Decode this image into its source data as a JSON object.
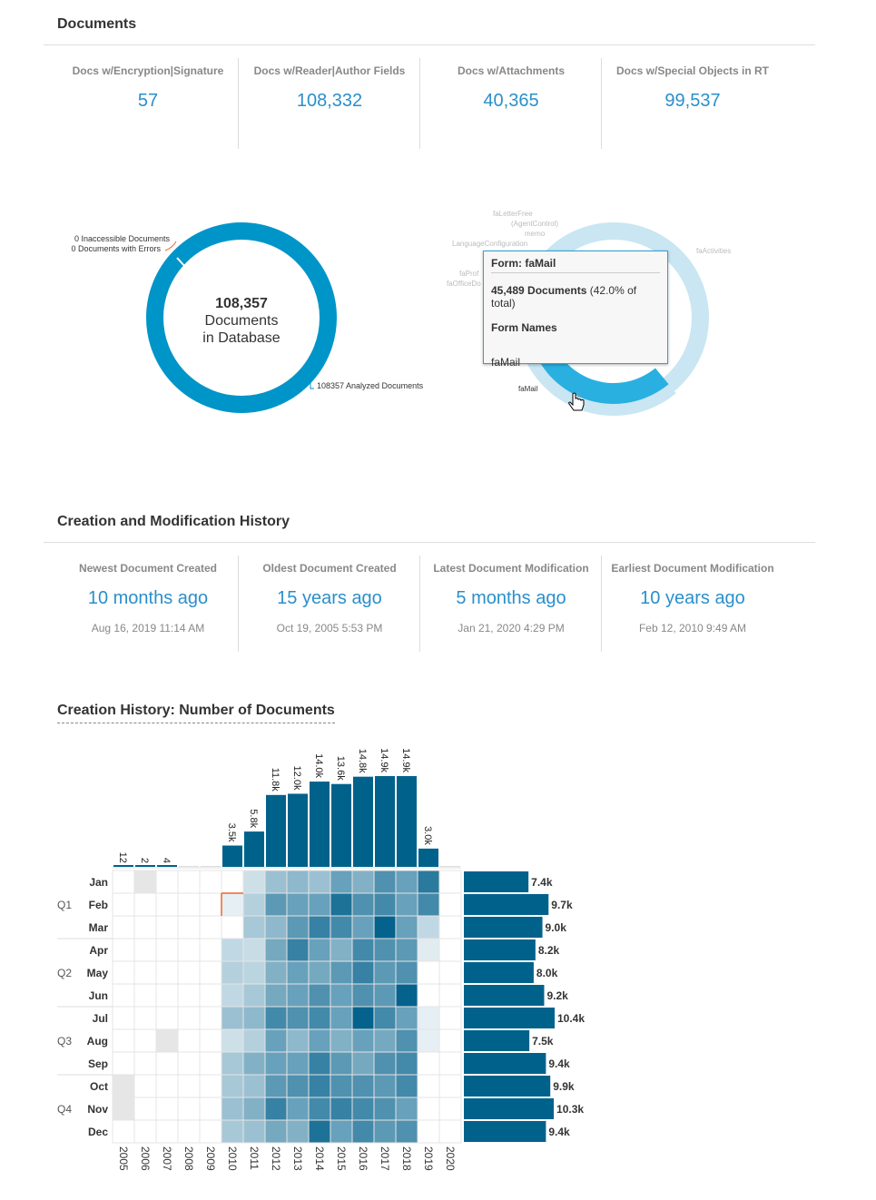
{
  "documents": {
    "title": "Documents",
    "stats": [
      {
        "label": "Docs w/Encryption|Signature",
        "value": "57"
      },
      {
        "label": "Docs w/Reader|Author Fields",
        "value": "108,332"
      },
      {
        "label": "Docs w/Attachments",
        "value": "40,365"
      },
      {
        "label": "Docs w/Special Objects in RT",
        "value": "99,537"
      }
    ]
  },
  "db_donut": {
    "total": "108,357",
    "line1": "Documents",
    "line2": "in Database",
    "label_inaccessible": "0 Inaccessible Documents",
    "label_errors": "0 Documents with Errors",
    "label_analyzed": "108357 Analyzed Documents",
    "color": "#0095c8"
  },
  "form_donut": {
    "labels": [
      "faLetterFree",
      "(AgentControl)",
      "memo",
      "LanguageConfiguration",
      "faProf",
      "faOfficeDo",
      "faActivities",
      "faMail"
    ],
    "hovered_share": 0.42,
    "colors": {
      "ring": "#c9e6f2",
      "hovered": "#29b0e0"
    },
    "tooltip": {
      "title": "Form: faMail",
      "count": "45,489 Documents",
      "pct": "(42.0% of total)",
      "names_header": "Form Names",
      "names": "faMail"
    }
  },
  "history": {
    "title": "Creation and Modification History",
    "stats": [
      {
        "label": "Newest Document Created",
        "value": "10 months ago",
        "date": "Aug 16, 2019 11:14 AM"
      },
      {
        "label": "Oldest Document Created",
        "value": "15 years ago",
        "date": "Oct 19, 2005 5:53 PM"
      },
      {
        "label": "Latest Document Modification",
        "value": "5 months ago",
        "date": "Jan 21, 2020 4:29 PM"
      },
      {
        "label": "Earliest Document Modification",
        "value": "10 years ago",
        "date": "Feb 12, 2010 9:49 AM"
      }
    ]
  },
  "chart_data": {
    "type": "heatmap",
    "title": "Creation History: Number of Documents",
    "years": [
      "2005",
      "2006",
      "2007",
      "2008",
      "2009",
      "2010",
      "2011",
      "2012",
      "2013",
      "2014",
      "2015",
      "2016",
      "2017",
      "2018",
      "2019",
      "2020"
    ],
    "year_totals": [
      12,
      2,
      4,
      0,
      0,
      3500,
      5800,
      11800,
      12000,
      14000,
      13600,
      14800,
      14900,
      14900,
      3000,
      0
    ],
    "year_labels": [
      "12",
      "2",
      "4",
      "",
      "",
      "3.5k",
      "5.8k",
      "11.8k",
      "12.0k",
      "14.0k",
      "13.6k",
      "14.8k",
      "14.9k",
      "14.9k",
      "3.0k",
      ""
    ],
    "months": [
      "Jan",
      "Feb",
      "Mar",
      "Apr",
      "May",
      "Jun",
      "Jul",
      "Aug",
      "Sep",
      "Oct",
      "Nov",
      "Dec"
    ],
    "quarters": [
      "Q1",
      "Q2",
      "Q3",
      "Q4"
    ],
    "month_totals": [
      7400,
      9700,
      9000,
      8200,
      8000,
      9200,
      10400,
      7500,
      9400,
      9900,
      10300,
      9400
    ],
    "month_labels": [
      "7.4k",
      "9.7k",
      "9.0k",
      "8.2k",
      "8.0k",
      "9.2k",
      "10.4k",
      "7.5k",
      "9.4k",
      "9.9k",
      "10.3k",
      "9.4k"
    ],
    "intensity_note": "relative intensity 0-1; -1 = very few documents (gray)",
    "intensity": [
      [
        0,
        -1,
        0,
        0,
        0,
        0,
        0.2,
        0.4,
        0.45,
        0.4,
        0.6,
        0.5,
        0.7,
        0.6,
        0.85,
        0
      ],
      [
        0,
        0,
        0,
        0,
        0,
        0.1,
        0.3,
        0.65,
        0.6,
        0.6,
        0.9,
        0.7,
        0.75,
        0.6,
        0.75,
        0
      ],
      [
        0,
        0,
        0,
        0,
        0,
        0,
        0.35,
        0.45,
        0.65,
        0.8,
        0.75,
        0.6,
        1.0,
        0.6,
        0.25,
        0
      ],
      [
        0,
        0,
        0,
        0,
        0,
        0.25,
        0.22,
        0.55,
        0.8,
        0.6,
        0.5,
        0.75,
        0.7,
        0.65,
        0.12,
        0
      ],
      [
        0,
        0,
        0,
        0,
        0,
        0.3,
        0.27,
        0.5,
        0.6,
        0.55,
        0.65,
        0.8,
        0.65,
        0.7,
        0,
        0
      ],
      [
        0,
        0,
        0,
        0,
        0,
        0.25,
        0.35,
        0.55,
        0.6,
        0.7,
        0.6,
        0.7,
        0.65,
        1.0,
        0,
        0
      ],
      [
        0,
        0,
        0,
        0,
        0,
        0.4,
        0.45,
        0.75,
        0.7,
        0.75,
        0.6,
        1.0,
        0.75,
        0.6,
        0.1,
        0
      ],
      [
        0,
        0,
        -1,
        0,
        0,
        0.2,
        0.3,
        0.6,
        0.45,
        0.6,
        0.5,
        0.6,
        0.55,
        0.7,
        0.1,
        0
      ],
      [
        0,
        0,
        0,
        0,
        0,
        0.35,
        0.5,
        0.6,
        0.6,
        0.8,
        0.65,
        0.55,
        0.7,
        0.75,
        0,
        0
      ],
      [
        -1,
        0,
        0,
        0,
        0,
        0.35,
        0.4,
        0.65,
        0.7,
        0.8,
        0.7,
        0.7,
        0.65,
        0.75,
        0,
        0
      ],
      [
        -1,
        0,
        0,
        0,
        0,
        0.4,
        0.5,
        0.8,
        0.6,
        0.75,
        0.8,
        0.75,
        0.7,
        0.6,
        0,
        0
      ],
      [
        0,
        0,
        0,
        0,
        0,
        0.35,
        0.4,
        0.55,
        0.5,
        0.9,
        0.6,
        0.75,
        0.65,
        0.7,
        0,
        0
      ]
    ],
    "colors": {
      "bar": "#00628b",
      "cell_max": "#04628d",
      "gray": "#e6e6e6"
    }
  }
}
